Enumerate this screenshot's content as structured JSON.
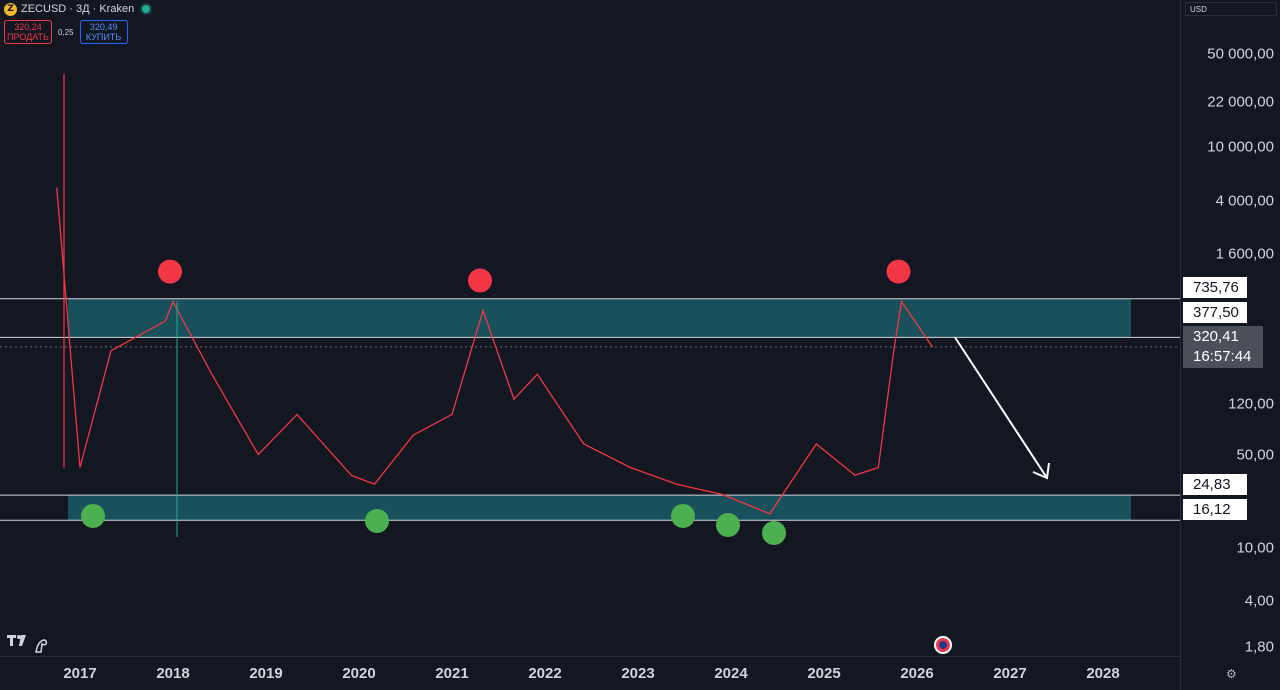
{
  "symbol": {
    "coin_glyph": "Z",
    "title": "ZECUSD · 3Д · Kraken",
    "status_color": "#22ab94"
  },
  "trade": {
    "sell_price": "320,24",
    "sell_label": "ПРОДАТЬ",
    "spread": "0,25",
    "buy_price": "320,49",
    "buy_label": "КУПИТЬ"
  },
  "price_axis": {
    "currency": "USD",
    "scale": "log",
    "labels": [
      "50 000,00",
      "22 000,00",
      "10 000,00",
      "4 000,00",
      "1 600,00",
      "120,00",
      "50,00",
      "10,00",
      "4,00",
      "1,80"
    ],
    "tags": [
      "735,76",
      "377,50",
      "24,83",
      "16,12"
    ],
    "current_price": "320,41",
    "countdown": "16:57:44"
  },
  "time_axis": {
    "years": [
      "2017",
      "2018",
      "2019",
      "2020",
      "2021",
      "2022",
      "2023",
      "2024",
      "2025",
      "2026",
      "2027",
      "2028"
    ]
  },
  "chart_data": {
    "type": "line",
    "series_type": "candlestick (shown as close path)",
    "y_scale": "log",
    "x": [
      "2016-10",
      "2017-01",
      "2017-05",
      "2017-12",
      "2018-01",
      "2018-06",
      "2018-12",
      "2019-05",
      "2019-12",
      "2020-03",
      "2020-08",
      "2021-01",
      "2021-05",
      "2021-09",
      "2021-12",
      "2022-06",
      "2022-12",
      "2023-06",
      "2023-12",
      "2024-06",
      "2024-12",
      "2025-05",
      "2025-08",
      "2025-10",
      "2025-11",
      "2026-03"
    ],
    "y": [
      5000,
      40,
      300,
      500,
      700,
      200,
      50,
      100,
      35,
      30,
      70,
      100,
      600,
      130,
      200,
      60,
      40,
      30,
      25,
      18,
      60,
      35,
      40,
      300,
      700,
      320
    ],
    "zones": [
      {
        "name": "resistance",
        "low": 377.5,
        "high": 735.76,
        "color": "#1a5c66"
      },
      {
        "name": "support",
        "low": 16.12,
        "high": 24.83,
        "color": "#1a5c66"
      }
    ],
    "highs": [
      "2018-01",
      "2021-05",
      "2025-11"
    ],
    "lows": [
      "2017-01",
      "2020-03",
      "2023-06",
      "2023-12",
      "2024-06"
    ],
    "projection_arrow": {
      "from": [
        "2026-03",
        377.5
      ],
      "to": [
        "2027-05",
        24.83
      ],
      "color": "#ffffff"
    },
    "marker_colors": {
      "high": "#f23645",
      "low": "#4caf50"
    },
    "candle_colors": {
      "up": "#22ab94",
      "down": "#f23645"
    }
  }
}
